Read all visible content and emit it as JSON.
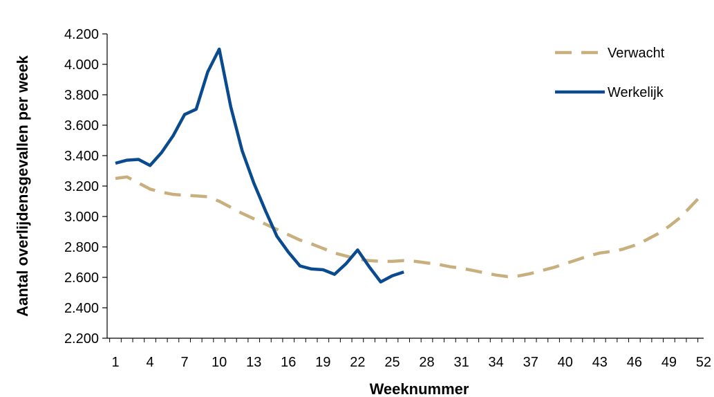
{
  "chart_data": {
    "type": "line",
    "title": "",
    "xlabel": "Weeknummer",
    "ylabel": "Aantal overlijdensgevallen per week",
    "xlim": [
      1,
      52
    ],
    "ylim": [
      2200,
      4200
    ],
    "x_ticks": [
      1,
      4,
      7,
      10,
      13,
      16,
      19,
      22,
      25,
      28,
      31,
      34,
      37,
      40,
      43,
      46,
      49,
      52
    ],
    "y_ticks": [
      2200,
      2400,
      2600,
      2800,
      3000,
      3200,
      3400,
      3600,
      3800,
      4000,
      4200
    ],
    "x_tick_labels": [
      "1",
      "4",
      "7",
      "10",
      "13",
      "16",
      "19",
      "22",
      "25",
      "28",
      "31",
      "34",
      "37",
      "40",
      "43",
      "46",
      "49",
      "52"
    ],
    "y_tick_labels": [
      "2.200",
      "2.400",
      "2.600",
      "2.800",
      "3.000",
      "3.200",
      "3.400",
      "3.600",
      "3.800",
      "4.000",
      "4.200"
    ],
    "grid": false,
    "legend": "top-right",
    "series": [
      {
        "name": "Verwacht",
        "style": "dashed",
        "color": "#C8B07E",
        "x": [
          1,
          2,
          3,
          4,
          5,
          6,
          7,
          8,
          9,
          10,
          11,
          12,
          13,
          14,
          15,
          16,
          17,
          18,
          19,
          20,
          21,
          22,
          23,
          24,
          25,
          26,
          27,
          28,
          29,
          30,
          31,
          32,
          33,
          34,
          35,
          36,
          37,
          38,
          39,
          40,
          41,
          42,
          43,
          44,
          45,
          46,
          47,
          48,
          49,
          50,
          51,
          52
        ],
        "values": [
          3250,
          3260,
          3220,
          3180,
          3160,
          3145,
          3140,
          3135,
          3130,
          3100,
          3060,
          3020,
          2985,
          2950,
          2915,
          2880,
          2845,
          2820,
          2790,
          2760,
          2740,
          2720,
          2710,
          2705,
          2705,
          2710,
          2705,
          2695,
          2685,
          2670,
          2660,
          2645,
          2630,
          2615,
          2605,
          2610,
          2625,
          2645,
          2665,
          2690,
          2715,
          2740,
          2760,
          2770,
          2785,
          2810,
          2845,
          2885,
          2935,
          2995,
          3075,
          3155
        ]
      },
      {
        "name": "Werkelijk",
        "style": "solid",
        "color": "#0A4A8F",
        "x": [
          1,
          2,
          3,
          4,
          5,
          6,
          7,
          8,
          9,
          10,
          11,
          12,
          13,
          14,
          15,
          16,
          17,
          18,
          19,
          20,
          21,
          22,
          23,
          24,
          25,
          26
        ],
        "values": [
          3350,
          3370,
          3375,
          3335,
          3420,
          3530,
          3670,
          3705,
          3950,
          4100,
          3720,
          3430,
          3220,
          3040,
          2870,
          2765,
          2675,
          2655,
          2650,
          2620,
          2690,
          2780,
          2670,
          2570,
          2610,
          2635
        ]
      }
    ]
  }
}
